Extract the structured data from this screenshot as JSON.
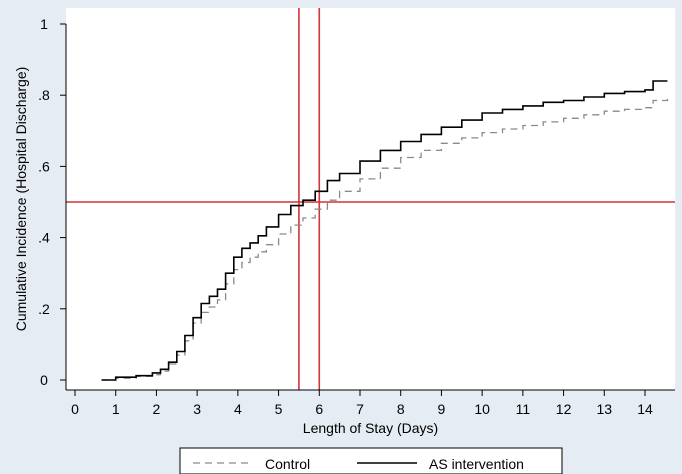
{
  "chart_data": {
    "type": "line",
    "title": "",
    "xlabel": "Length of Stay (Days)",
    "ylabel": "Cumulative Incidence (Hospital Discharge)",
    "xlim": [
      0,
      14.7
    ],
    "ylim": [
      0,
      1
    ],
    "x_ticks": [
      0,
      1,
      2,
      3,
      4,
      5,
      6,
      7,
      8,
      9,
      10,
      11,
      12,
      13,
      14
    ],
    "x_tick_labels": [
      "0",
      "1",
      "2",
      "3",
      "4",
      "5",
      "6",
      "7",
      "8",
      "9",
      "10",
      "11",
      "12",
      "13",
      "14"
    ],
    "y_ticks": [
      0,
      0.2,
      0.4,
      0.6,
      0.8,
      1
    ],
    "y_tick_labels": [
      "0",
      ".2",
      ".4",
      ".6",
      ".8",
      "1"
    ],
    "grid": false,
    "legend_position": "bottom",
    "reference_lines": [
      {
        "axis": "y",
        "value": 0.5,
        "color": "#d0343c"
      },
      {
        "axis": "x",
        "value": 5.5,
        "color": "#d0343c"
      },
      {
        "axis": "x",
        "value": 6.0,
        "color": "#d0343c"
      }
    ],
    "series": [
      {
        "name": "Control",
        "style": "dashed",
        "color": "#8a8a8a",
        "x": [
          0.65,
          1.0,
          1.5,
          1.9,
          2.1,
          2.3,
          2.5,
          2.7,
          2.9,
          3.1,
          3.3,
          3.5,
          3.7,
          3.9,
          4.1,
          4.3,
          4.5,
          4.7,
          5.0,
          5.3,
          5.6,
          5.9,
          6.2,
          6.5,
          7.0,
          7.5,
          8.0,
          8.5,
          9.0,
          9.5,
          10.0,
          10.5,
          11.0,
          11.5,
          12.0,
          12.5,
          13.0,
          13.5,
          14.0,
          14.2,
          14.2,
          14.55
        ],
        "y": [
          0.0,
          0.005,
          0.01,
          0.015,
          0.025,
          0.045,
          0.07,
          0.11,
          0.16,
          0.19,
          0.205,
          0.225,
          0.27,
          0.31,
          0.33,
          0.345,
          0.36,
          0.38,
          0.41,
          0.435,
          0.455,
          0.48,
          0.505,
          0.53,
          0.565,
          0.595,
          0.625,
          0.645,
          0.665,
          0.68,
          0.695,
          0.705,
          0.715,
          0.725,
          0.735,
          0.745,
          0.755,
          0.76,
          0.765,
          0.77,
          0.785,
          0.79
        ]
      },
      {
        "name": "AS intervention",
        "style": "solid",
        "color": "#000000",
        "x": [
          0.65,
          0.85,
          1.0,
          1.5,
          1.9,
          2.1,
          2.3,
          2.5,
          2.7,
          2.9,
          3.1,
          3.3,
          3.5,
          3.7,
          3.9,
          4.1,
          4.3,
          4.5,
          4.7,
          5.0,
          5.3,
          5.6,
          5.9,
          6.2,
          6.5,
          7.0,
          7.5,
          8.0,
          8.5,
          9.0,
          9.5,
          10.0,
          10.5,
          11.0,
          11.5,
          12.0,
          12.5,
          13.0,
          13.5,
          14.0,
          14.2,
          14.2,
          14.55
        ],
        "y": [
          0.0,
          0.0,
          0.008,
          0.012,
          0.02,
          0.03,
          0.05,
          0.08,
          0.125,
          0.175,
          0.215,
          0.235,
          0.255,
          0.3,
          0.345,
          0.37,
          0.385,
          0.405,
          0.43,
          0.465,
          0.49,
          0.505,
          0.53,
          0.56,
          0.58,
          0.615,
          0.645,
          0.67,
          0.69,
          0.71,
          0.73,
          0.75,
          0.76,
          0.77,
          0.78,
          0.785,
          0.795,
          0.805,
          0.81,
          0.815,
          0.82,
          0.84,
          0.84
        ]
      }
    ]
  }
}
